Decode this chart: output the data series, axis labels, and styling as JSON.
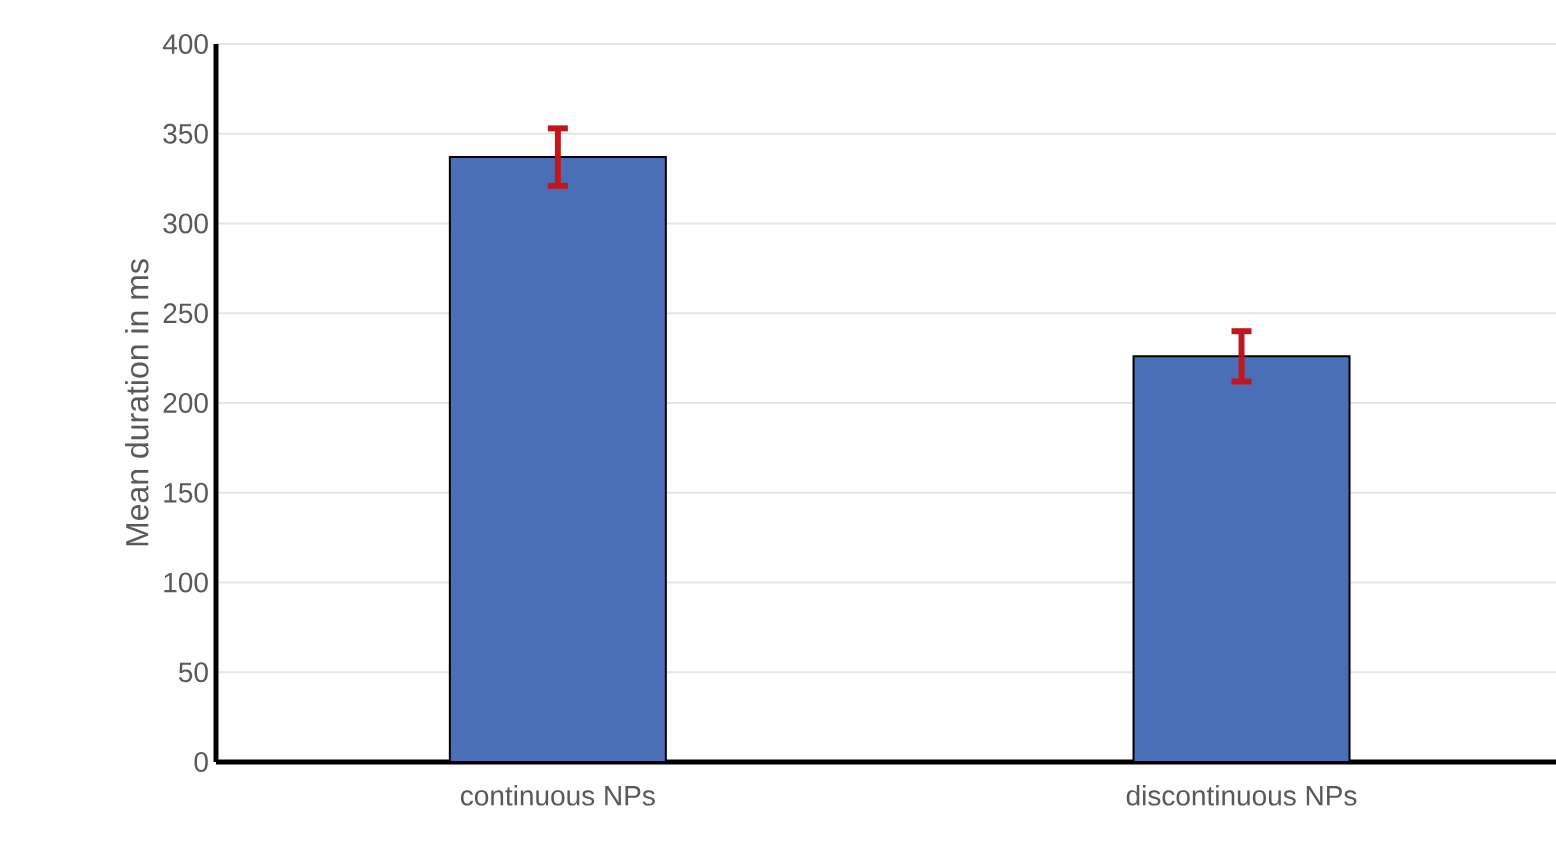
{
  "chart_data": {
    "type": "bar",
    "ylabel": "Mean duration in ms",
    "categories": [
      "continuous NPs",
      "discontinuous NPs"
    ],
    "values": [
      337,
      226
    ],
    "errors": [
      16,
      14
    ],
    "color": "#4a6fb6",
    "ylim": [
      0,
      400
    ],
    "yticks": [
      0,
      50,
      100,
      150,
      200,
      250,
      300,
      350,
      400
    ],
    "grid": "y"
  }
}
